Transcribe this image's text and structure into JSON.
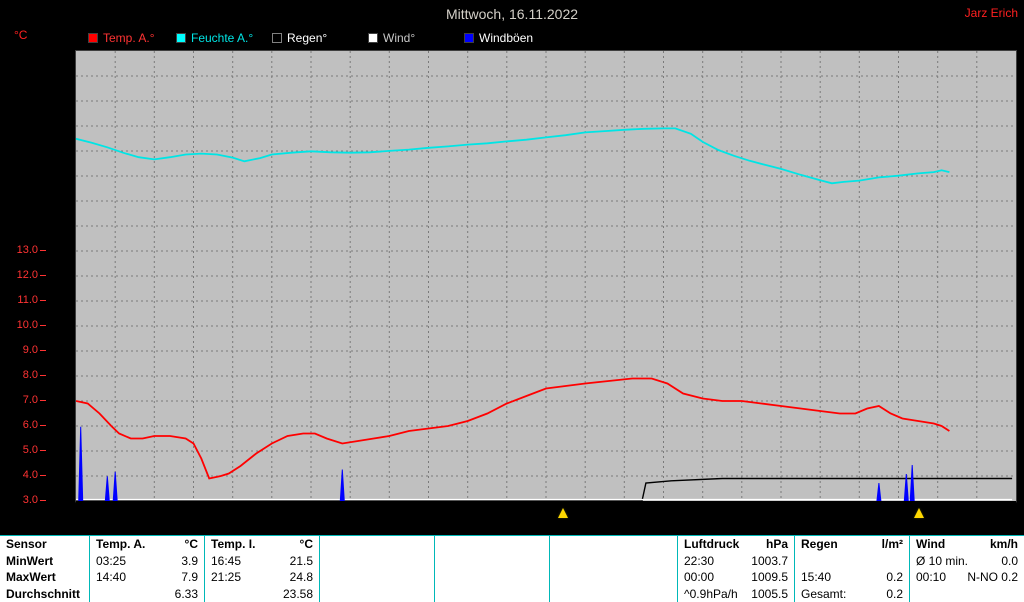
{
  "header": {
    "title": "Mittwoch, 16.11.2022",
    "user": "Jarz Erich",
    "y_axis_unit": "°C"
  },
  "legend": [
    {
      "label": "Temp. A.°",
      "color": "#ff0000",
      "text_color": "#ff3333"
    },
    {
      "label": "Feuchte A.°",
      "color": "#00ffff",
      "text_color": "#00e5e5"
    },
    {
      "label": "Regen°",
      "color": "#000000",
      "text_color": "#ffffff"
    },
    {
      "label": "Wind°",
      "color": "#ffffff",
      "text_color": "#c8c8c8"
    },
    {
      "label": "Windböen",
      "color": "#0000ff",
      "text_color": "#ffffff"
    }
  ],
  "chart_data": {
    "type": "line",
    "title": "Mittwoch, 16.11.2022",
    "x_axis": {
      "unit": "hours",
      "range": [
        0,
        24
      ],
      "gridline_every": 1,
      "tick_labels_visible": false
    },
    "y_axis_left": {
      "unit": "°C",
      "color": "#ff3333",
      "plot_value_range": [
        3,
        21
      ],
      "ticks": [
        {
          "value": 13,
          "label": "13.0"
        },
        {
          "value": 12,
          "label": "12.0"
        },
        {
          "value": 11,
          "label": "11.0"
        },
        {
          "value": 10,
          "label": "10.0"
        },
        {
          "value": 9,
          "label": "9.0"
        },
        {
          "value": 8,
          "label": "8.0"
        },
        {
          "value": 7,
          "label": "7.0"
        },
        {
          "value": 6,
          "label": "6.0"
        },
        {
          "value": 5,
          "label": "5.0"
        },
        {
          "value": 4,
          "label": "4.0"
        },
        {
          "value": 3,
          "label": "3.0"
        }
      ]
    },
    "plot_background": "#c0c0c0",
    "grid": {
      "color": "#7a7a7a",
      "style": "dashed"
    },
    "series": [
      {
        "name": "Feuchte A",
        "type": "line",
        "color": "#00e5e5",
        "unit": "%",
        "axis_range": [
          0,
          100
        ],
        "points": [
          [
            0,
            80.5
          ],
          [
            0.4,
            79.6
          ],
          [
            0.8,
            78.6
          ],
          [
            1.2,
            77.4
          ],
          [
            1.6,
            76.4
          ],
          [
            2,
            75.9
          ],
          [
            2.4,
            76.4
          ],
          [
            2.8,
            77
          ],
          [
            3.2,
            77.2
          ],
          [
            3.6,
            77
          ],
          [
            4,
            76.3
          ],
          [
            4.3,
            75.5
          ],
          [
            4.7,
            76.2
          ],
          [
            5,
            77
          ],
          [
            5.5,
            77.4
          ],
          [
            6,
            77.7
          ],
          [
            6.5,
            77.5
          ],
          [
            7,
            77.4
          ],
          [
            7.5,
            77.5
          ],
          [
            8,
            77.8
          ],
          [
            8.5,
            78.1
          ],
          [
            9,
            78.5
          ],
          [
            9.5,
            78.8
          ],
          [
            10,
            79.2
          ],
          [
            10.5,
            79.5
          ],
          [
            11,
            79.9
          ],
          [
            11.5,
            80.3
          ],
          [
            12,
            80.8
          ],
          [
            12.5,
            81.3
          ],
          [
            13,
            81.9
          ],
          [
            13.5,
            82.2
          ],
          [
            14,
            82.5
          ],
          [
            14.5,
            82.7
          ],
          [
            15,
            82.8
          ],
          [
            15.3,
            82.8
          ],
          [
            15.7,
            81.6
          ],
          [
            16,
            79.8
          ],
          [
            16.4,
            78
          ],
          [
            16.8,
            76.7
          ],
          [
            17.2,
            75.6
          ],
          [
            17.6,
            74.7
          ],
          [
            18,
            73.8
          ],
          [
            18.5,
            72.5
          ],
          [
            19,
            71.3
          ],
          [
            19.3,
            70.6
          ],
          [
            19.6,
            70.9
          ],
          [
            20,
            71.2
          ],
          [
            20.5,
            71.9
          ],
          [
            21,
            72.3
          ],
          [
            21.5,
            72.8
          ],
          [
            21.9,
            73.1
          ],
          [
            22.1,
            73.5
          ],
          [
            22.3,
            73.1
          ]
        ]
      },
      {
        "name": "Temp. A.",
        "type": "line",
        "color": "#ff0000",
        "unit": "°C",
        "axis_range": [
          3,
          21
        ],
        "points": [
          [
            0,
            7
          ],
          [
            0.3,
            6.9
          ],
          [
            0.6,
            6.5
          ],
          [
            0.9,
            6
          ],
          [
            1.1,
            5.7
          ],
          [
            1.4,
            5.5
          ],
          [
            1.7,
            5.5
          ],
          [
            2,
            5.6
          ],
          [
            2.4,
            5.6
          ],
          [
            2.8,
            5.5
          ],
          [
            3,
            5.3
          ],
          [
            3.2,
            4.7
          ],
          [
            3.4,
            3.9
          ],
          [
            3.7,
            4
          ],
          [
            3.9,
            4.1
          ],
          [
            4.2,
            4.4
          ],
          [
            4.6,
            4.9
          ],
          [
            5,
            5.3
          ],
          [
            5.4,
            5.6
          ],
          [
            5.8,
            5.7
          ],
          [
            6.1,
            5.7
          ],
          [
            6.4,
            5.5
          ],
          [
            6.8,
            5.3
          ],
          [
            7.2,
            5.4
          ],
          [
            7.6,
            5.5
          ],
          [
            8,
            5.6
          ],
          [
            8.5,
            5.8
          ],
          [
            9,
            5.9
          ],
          [
            9.5,
            6
          ],
          [
            10,
            6.2
          ],
          [
            10.5,
            6.5
          ],
          [
            11,
            6.9
          ],
          [
            11.5,
            7.2
          ],
          [
            12,
            7.5
          ],
          [
            12.5,
            7.6
          ],
          [
            13,
            7.7
          ],
          [
            13.6,
            7.8
          ],
          [
            14.2,
            7.9
          ],
          [
            14.7,
            7.9
          ],
          [
            15.1,
            7.7
          ],
          [
            15.5,
            7.3
          ],
          [
            16,
            7.1
          ],
          [
            16.5,
            7
          ],
          [
            17,
            7
          ],
          [
            17.5,
            6.9
          ],
          [
            18,
            6.8
          ],
          [
            18.5,
            6.7
          ],
          [
            19,
            6.6
          ],
          [
            19.5,
            6.5
          ],
          [
            19.9,
            6.5
          ],
          [
            20.2,
            6.7
          ],
          [
            20.5,
            6.8
          ],
          [
            20.8,
            6.5
          ],
          [
            21.1,
            6.3
          ],
          [
            21.5,
            6.2
          ],
          [
            21.9,
            6.1
          ],
          [
            22.1,
            6
          ],
          [
            22.3,
            5.8
          ]
        ]
      },
      {
        "name": "Regen",
        "type": "line",
        "color": "#000000",
        "unit": "l/m²",
        "axis_range": [
          0,
          4
        ],
        "points": [
          [
            0,
            0
          ],
          [
            14.45,
            0
          ],
          [
            14.55,
            0.16
          ],
          [
            15.2,
            0.18
          ],
          [
            16.5,
            0.2
          ],
          [
            23.9,
            0.2
          ]
        ]
      },
      {
        "name": "Wind",
        "type": "line",
        "color": "#ffffff",
        "unit": "km/h",
        "axis_range": [
          0,
          100
        ],
        "points": [
          [
            0,
            0.3
          ],
          [
            23.9,
            0.3
          ]
        ]
      },
      {
        "name": "Windböen",
        "type": "spikes",
        "color": "#0000ff",
        "unit": "relative",
        "axis_range": [
          0,
          100
        ],
        "spikes": [
          [
            0.12,
            16.5
          ],
          [
            0.8,
            5.5
          ],
          [
            1.0,
            6.5
          ],
          [
            6.8,
            7
          ],
          [
            20.5,
            4
          ],
          [
            21.2,
            6
          ],
          [
            21.35,
            8
          ]
        ]
      }
    ],
    "event_markers": [
      {
        "t": 12.45
      },
      {
        "t": 21.55
      }
    ]
  },
  "table": {
    "grid_color": "#00b8b8",
    "header": {
      "c0": "Sensor",
      "c1l": "Temp. A.",
      "c1r": "°C",
      "c2l": "Temp. I.",
      "c2r": "°C",
      "c6l": "Luftdruck",
      "c6r": "hPa",
      "c7l": "Regen",
      "c7r": "l/m²",
      "c8l": "Wind",
      "c8r": "km/h"
    },
    "min": {
      "c0": "MinWert",
      "c1l": "03:25",
      "c1r": "3.9",
      "c2l": "16:45",
      "c2r": "21.5",
      "c6l": "22:30",
      "c6r": "1003.7",
      "c8l": "Ø 10 min.",
      "c8r": "0.0"
    },
    "max": {
      "c0": "MaxWert",
      "c1l": "14:40",
      "c1r": "7.9",
      "c2l": "21:25",
      "c2r": "24.8",
      "c6l": "00:00",
      "c6r": "1009.5",
      "c7l": "15:40",
      "c7r": "0.2",
      "c8l": "00:10",
      "c8r": "N-NO 0.2"
    },
    "avg": {
      "c0": "Durchschnitt",
      "c1r": "6.33",
      "c2r": "23.58",
      "c6l": "^0.9hPa/h",
      "c6r": "1005.5",
      "c7l": "Gesamt:",
      "c7r": "0.2"
    }
  }
}
